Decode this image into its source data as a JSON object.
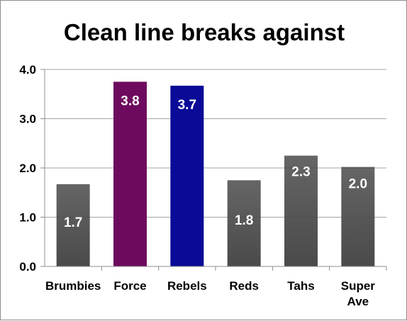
{
  "chart_data": {
    "type": "bar",
    "title": "Clean line breaks against",
    "xlabel": "",
    "ylabel": "",
    "categories": [
      [
        "Brumbies"
      ],
      [
        "Force"
      ],
      [
        "Rebels"
      ],
      [
        "Reds"
      ],
      [
        "Tahs"
      ],
      [
        "Super",
        "Ave"
      ]
    ],
    "values": [
      1.7,
      3.8,
      3.7,
      1.8,
      2.3,
      2.0
    ],
    "bar_heights": [
      1.67,
      3.75,
      3.67,
      1.75,
      2.25,
      2.02
    ],
    "data_labels": [
      "1.7",
      "3.8",
      "3.7",
      "1.8",
      "2.3",
      "2.0"
    ],
    "ylim": [
      0,
      4
    ],
    "yticks": [
      "0.0",
      "1.0",
      "2.0",
      "3.0",
      "4.0"
    ],
    "grid": true,
    "legend": "none",
    "colors": {
      "default_bar": "#4a4a4a",
      "Force": "#6e0a5e",
      "Rebels": "#0a0a96",
      "grid": "#a6a6a6",
      "axis": "#8c8c8c"
    }
  }
}
